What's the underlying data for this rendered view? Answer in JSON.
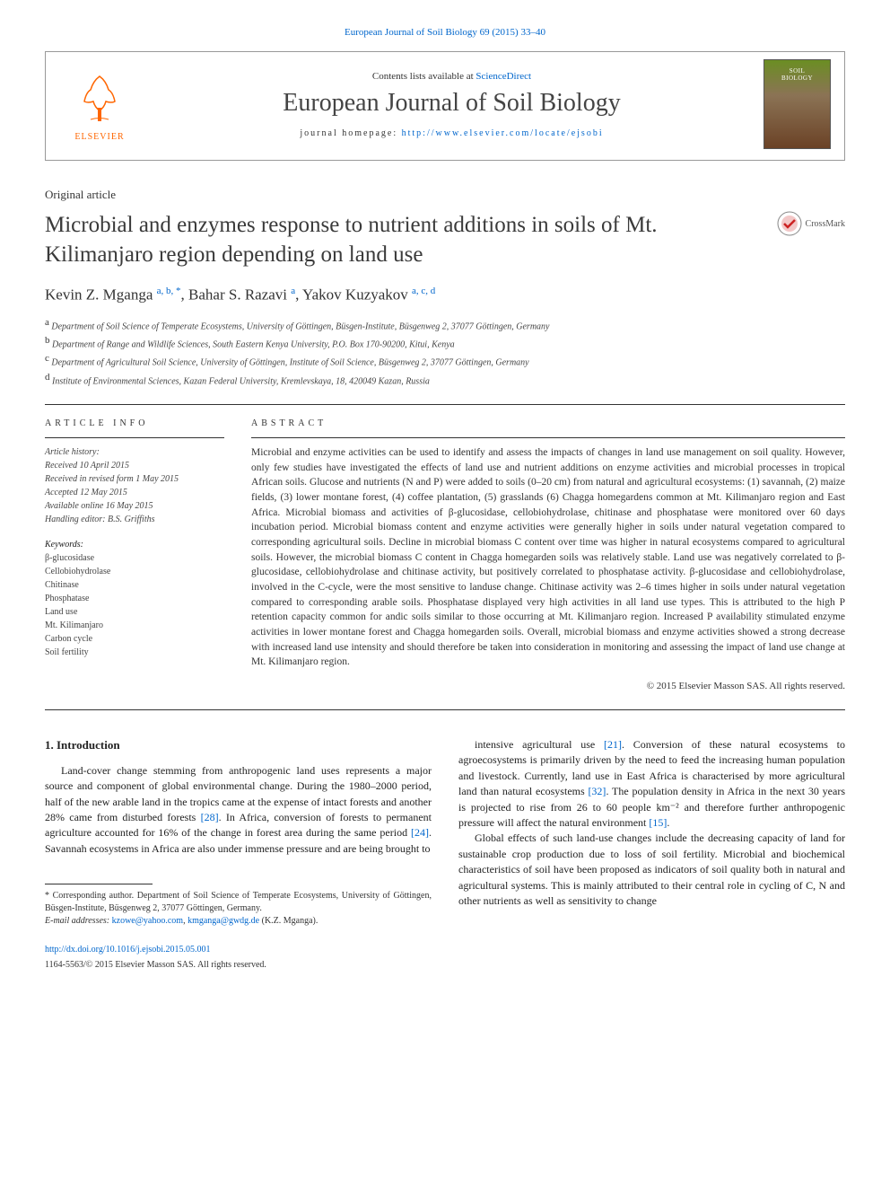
{
  "top_citation": "European Journal of Soil Biology 69 (2015) 33–40",
  "header": {
    "contents_text": "Contents lists available at ",
    "contents_link": "ScienceDirect",
    "journal_name": "European Journal of Soil Biology",
    "homepage_label": "journal homepage: ",
    "homepage_url": "http://www.elsevier.com/locate/ejsobi",
    "elsevier_label": "ELSEVIER",
    "cover_top": "SOIL",
    "cover_bottom": "BIOLOGY"
  },
  "article_type": "Original article",
  "title": "Microbial and enzymes response to nutrient additions in soils of Mt. Kilimanjaro region depending on land use",
  "crossmark_label": "CrossMark",
  "authors_html": "Kevin Z. Mganga <span class='sup'>a, b, *</span>, Bahar S. Razavi <span class='sup'>a</span>, Yakov Kuzyakov <span class='sup'>a, c, d</span>",
  "affiliations": [
    {
      "sup": "a",
      "text": "Department of Soil Science of Temperate Ecosystems, University of Göttingen, Büsgen-Institute, Büsgenweg 2, 37077 Göttingen, Germany"
    },
    {
      "sup": "b",
      "text": "Department of Range and Wildlife Sciences, South Eastern Kenya University, P.O. Box 170-90200, Kitui, Kenya"
    },
    {
      "sup": "c",
      "text": "Department of Agricultural Soil Science, University of Göttingen, Institute of Soil Science, Büsgenweg 2, 37077 Göttingen, Germany"
    },
    {
      "sup": "d",
      "text": "Institute of Environmental Sciences, Kazan Federal University, Kremlevskaya, 18, 420049 Kazan, Russia"
    }
  ],
  "info_label": "ARTICLE INFO",
  "abstract_label": "ABSTRACT",
  "history": {
    "label": "Article history:",
    "received": "Received 10 April 2015",
    "revised": "Received in revised form 1 May 2015",
    "accepted": "Accepted 12 May 2015",
    "online": "Available online 16 May 2015",
    "editor": "Handling editor: B.S. Griffiths"
  },
  "keywords_label": "Keywords:",
  "keywords": [
    "β-glucosidase",
    "Cellobiohydrolase",
    "Chitinase",
    "Phosphatase",
    "Land use",
    "Mt. Kilimanjaro",
    "Carbon cycle",
    "Soil fertility"
  ],
  "abstract_text": "Microbial and enzyme activities can be used to identify and assess the impacts of changes in land use management on soil quality. However, only few studies have investigated the effects of land use and nutrient additions on enzyme activities and microbial processes in tropical African soils. Glucose and nutrients (N and P) were added to soils (0–20 cm) from natural and agricultural ecosystems: (1) savannah, (2) maize fields, (3) lower montane forest, (4) coffee plantation, (5) grasslands (6) Chagga homegardens common at Mt. Kilimanjaro region and East Africa. Microbial biomass and activities of β-glucosidase, cellobiohydrolase, chitinase and phosphatase were monitored over 60 days incubation period. Microbial biomass content and enzyme activities were generally higher in soils under natural vegetation compared to corresponding agricultural soils. Decline in microbial biomass C content over time was higher in natural ecosystems compared to agricultural soils. However, the microbial biomass C content in Chagga homegarden soils was relatively stable. Land use was negatively correlated to β-glucosidase, cellobiohydrolase and chitinase activity, but positively correlated to phosphatase activity. β-glucosidase and cellobiohydrolase, involved in the C-cycle, were the most sensitive to landuse change. Chitinase activity was 2–6 times higher in soils under natural vegetation compared to corresponding arable soils. Phosphatase displayed very high activities in all land use types. This is attributed to the high P retention capacity common for andic soils similar to those occurring at Mt. Kilimanjaro region. Increased P availability stimulated enzyme activities in lower montane forest and Chagga homegarden soils. Overall, microbial biomass and enzyme activities showed a strong decrease with increased land use intensity and should therefore be taken into consideration in monitoring and assessing the impact of land use change at Mt. Kilimanjaro region.",
  "copyright": "© 2015 Elsevier Masson SAS. All rights reserved.",
  "body": {
    "heading": "1. Introduction",
    "para1": "Land-cover change stemming from anthropogenic land uses represents a major source and component of global environmental change. During the 1980–2000 period, half of the new arable land in the tropics came at the expense of intact forests and another 28% came from disturbed forests [28]. In Africa, conversion of forests to permanent agriculture accounted for 16% of the change in forest area during the same period [24]. Savannah ecosystems in Africa are also under immense pressure and are being brought to",
    "para2": "intensive agricultural use [21]. Conversion of these natural ecosystems to agroecosystems is primarily driven by the need to feed the increasing human population and livestock. Currently, land use in East Africa is characterised by more agricultural land than natural ecosystems [32]. The population density in Africa in the next 30 years is projected to rise from 26 to 60 people km⁻² and therefore further anthropogenic pressure will affect the natural environment [15].",
    "para3": "Global effects of such land-use changes include the decreasing capacity of land for sustainable crop production due to loss of soil fertility. Microbial and biochemical characteristics of soil have been proposed as indicators of soil quality both in natural and agricultural systems. This is mainly attributed to their central role in cycling of C, N and other nutrients as well as sensitivity to change"
  },
  "footnote": {
    "corresponding": "* Corresponding author. Department of Soil Science of Temperate Ecosystems, University of Göttingen, Büsgen-Institute, Büsgenweg 2, 37077 Göttingen, Germany.",
    "email_label": "E-mail addresses: ",
    "email1": "kzowe@yahoo.com",
    "email2": "kmganga@gwdg.de",
    "email_suffix": " (K.Z. Mganga)."
  },
  "doi": "http://dx.doi.org/10.1016/j.ejsobi.2015.05.001",
  "issn": "1164-5563/© 2015 Elsevier Masson SAS. All rights reserved.",
  "colors": {
    "link": "#0066cc",
    "orange": "#ff6600",
    "text": "#1a1a1a"
  }
}
